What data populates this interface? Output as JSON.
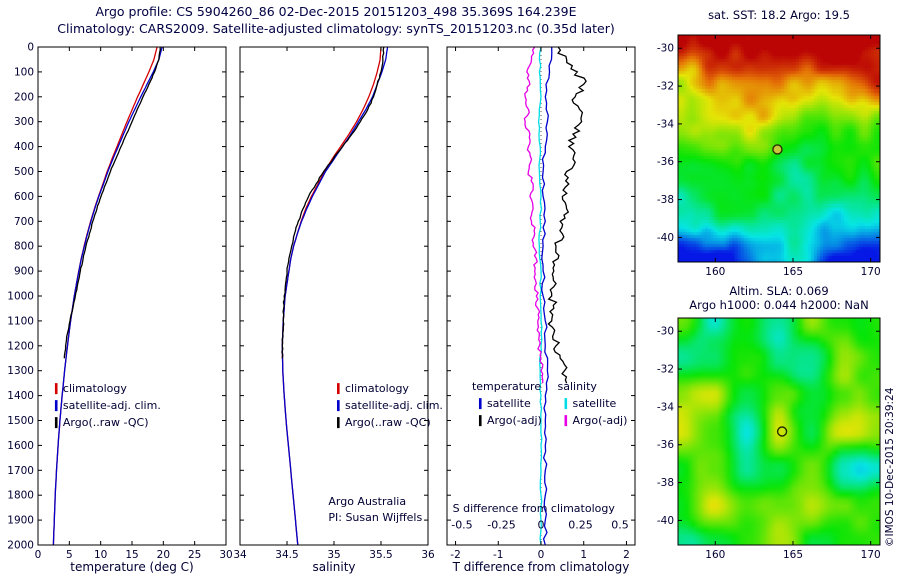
{
  "titles": {
    "line1": "Argo profile: CS 5904260_86 02-Dec-2015 20151203_498 35.369S 164.239E",
    "line2": "Climatology: CARS2009. Satellite-adjusted climatology: synTS_20151203.nc (0.35d later)"
  },
  "credit": "©IMOS 10-Dec-2015 20:39:24",
  "colors": {
    "climatology": "#d40000",
    "satclim": "#0000cd",
    "argo": "#000000",
    "sat_s": "#00dde4",
    "argo_s": "#e600e6",
    "text": "#000033"
  },
  "chart_data": [
    {
      "id": "temperature_profile",
      "type": "line",
      "xlabel": "temperature (deg C)",
      "xlim": [
        0,
        30
      ],
      "xticks": [
        0,
        5,
        10,
        15,
        20,
        25,
        30
      ],
      "xtick_labels": [
        "0",
        "5",
        "10",
        "15",
        "20",
        "25",
        "30"
      ],
      "ylim": [
        0,
        2000
      ],
      "yticks": [
        0,
        100,
        200,
        300,
        400,
        500,
        600,
        700,
        800,
        900,
        1000,
        1100,
        1200,
        1300,
        1400,
        1500,
        1600,
        1700,
        1800,
        1900,
        2000
      ],
      "show_ytick_labels": true,
      "legend": {
        "fx": 0.09,
        "fy": 0.693,
        "entries": [
          {
            "label": "climatology",
            "color": "climatology"
          },
          {
            "label": "satellite-adj. clim.",
            "color": "satclim"
          },
          {
            "label": "Argo(..raw -QC)",
            "color": "argo"
          }
        ]
      },
      "series": [
        {
          "name": "climatology",
          "color": "climatology",
          "jitter": 0,
          "depth": [
            0,
            50,
            100,
            150,
            200,
            250,
            300,
            350,
            400,
            450,
            500,
            550,
            600,
            650,
            700,
            750,
            800,
            850,
            900,
            950,
            1000,
            1100,
            1200,
            1300,
            1400,
            1500,
            1600,
            1700,
            1800,
            1900,
            2000
          ],
          "values": [
            19.0,
            18.5,
            17.7,
            16.8,
            15.9,
            15.05,
            14.2,
            13.4,
            12.6,
            11.8,
            11.05,
            10.35,
            9.65,
            9.0,
            8.4,
            7.85,
            7.35,
            6.9,
            6.5,
            6.15,
            5.8,
            5.2,
            4.7,
            4.25,
            3.85,
            3.5,
            3.2,
            2.95,
            2.75,
            2.6,
            2.45
          ]
        },
        {
          "name": "satellite-adj. clim.",
          "color": "satclim",
          "jitter": 0,
          "depth": [
            0,
            50,
            100,
            150,
            200,
            250,
            300,
            350,
            400,
            450,
            500,
            550,
            600,
            650,
            700,
            750,
            800,
            850,
            900,
            950,
            1000,
            1100,
            1200,
            1300,
            1400,
            1500,
            1600,
            1700,
            1800,
            1900,
            2000
          ],
          "values": [
            19.8,
            19.3,
            18.4,
            17.4,
            16.4,
            15.45,
            14.5,
            13.65,
            12.8,
            11.95,
            11.15,
            10.45,
            9.7,
            9.05,
            8.45,
            7.9,
            7.4,
            6.92,
            6.52,
            6.15,
            5.8,
            5.2,
            4.7,
            4.25,
            3.85,
            3.5,
            3.2,
            2.95,
            2.75,
            2.6,
            2.45
          ]
        },
        {
          "name": "Argo(..raw -QC)",
          "color": "argo",
          "jitter": 0.05,
          "seed": 4,
          "depth": [
            0,
            50,
            100,
            150,
            200,
            250,
            300,
            350,
            400,
            450,
            500,
            550,
            600,
            650,
            700,
            750,
            800,
            850,
            900,
            950,
            1000,
            1050,
            1100,
            1150,
            1200,
            1250
          ],
          "values": [
            19.5,
            19.3,
            18.6,
            17.7,
            16.75,
            15.85,
            15.0,
            14.1,
            13.25,
            12.4,
            11.55,
            10.8,
            10.05,
            9.4,
            8.75,
            8.2,
            7.65,
            7.2,
            6.75,
            6.35,
            5.95,
            5.55,
            5.1,
            4.7,
            4.4,
            4.2
          ]
        }
      ]
    },
    {
      "id": "salinity_profile",
      "type": "line",
      "xlabel": "salinity",
      "xlim": [
        34,
        36
      ],
      "xticks": [
        34,
        34.5,
        35,
        35.5,
        36
      ],
      "xtick_labels": [
        "34",
        "34.5",
        "35",
        "35.5",
        "36"
      ],
      "ylim": [
        0,
        2000
      ],
      "yticks": [
        0,
        100,
        200,
        300,
        400,
        500,
        600,
        700,
        800,
        900,
        1000,
        1100,
        1200,
        1300,
        1400,
        1500,
        1600,
        1700,
        1800,
        1900,
        2000
      ],
      "show_ytick_labels": false,
      "legend": {
        "fx": 0.516,
        "fy": 0.693,
        "entries": [
          {
            "label": "climatology",
            "color": "climatology"
          },
          {
            "label": "satellite-adj. clim.",
            "color": "satclim"
          },
          {
            "label": "Argo(..raw -QC)",
            "color": "argo"
          }
        ]
      },
      "annotations": [
        {
          "fx": 0.47,
          "fy": 0.92,
          "text": "Argo Australia"
        },
        {
          "fx": 0.47,
          "fy": 0.952,
          "text": "PI: Susan Wijffels"
        }
      ],
      "series": [
        {
          "name": "climatology",
          "color": "climatology",
          "jitter": 0,
          "depth": [
            0,
            50,
            100,
            150,
            200,
            250,
            300,
            350,
            400,
            450,
            500,
            550,
            600,
            650,
            700,
            750,
            800,
            850,
            900,
            950,
            1000,
            1100,
            1200,
            1300,
            1400,
            1500,
            1600,
            1700,
            1800,
            1900,
            2000
          ],
          "values": [
            35.5,
            35.49,
            35.46,
            35.42,
            35.37,
            35.31,
            35.24,
            35.16,
            35.07,
            34.98,
            34.9,
            34.83,
            34.76,
            34.7,
            34.65,
            34.61,
            34.57,
            34.54,
            34.52,
            34.5,
            34.48,
            34.46,
            34.45,
            34.455,
            34.47,
            34.49,
            34.515,
            34.54,
            34.565,
            34.59,
            34.615
          ]
        },
        {
          "name": "satellite-adj. clim.",
          "color": "satclim",
          "jitter": 0,
          "depth": [
            0,
            50,
            100,
            150,
            200,
            250,
            300,
            350,
            400,
            450,
            500,
            550,
            600,
            650,
            700,
            750,
            800,
            850,
            900,
            950,
            1000,
            1100,
            1200,
            1300,
            1400,
            1500,
            1600,
            1700,
            1800,
            1900,
            2000
          ],
          "values": [
            35.57,
            35.55,
            35.51,
            35.46,
            35.41,
            35.34,
            35.26,
            35.18,
            35.09,
            35.0,
            34.91,
            34.84,
            34.77,
            34.71,
            34.655,
            34.61,
            34.57,
            34.54,
            34.52,
            34.5,
            34.48,
            34.46,
            34.45,
            34.455,
            34.47,
            34.49,
            34.515,
            34.54,
            34.565,
            34.59,
            34.615
          ]
        },
        {
          "name": "Argo(..raw -QC)",
          "color": "argo",
          "jitter": 0.006,
          "seed": 9,
          "depth": [
            0,
            50,
            100,
            150,
            200,
            250,
            300,
            350,
            400,
            450,
            500,
            550,
            600,
            650,
            700,
            750,
            800,
            850,
            900,
            950,
            1000,
            1050,
            1100,
            1150,
            1200,
            1250
          ],
          "values": [
            35.53,
            35.52,
            35.5,
            35.46,
            35.42,
            35.36,
            35.28,
            35.19,
            35.09,
            34.99,
            34.89,
            34.81,
            34.73,
            34.67,
            34.62,
            34.58,
            34.55,
            34.52,
            34.5,
            34.485,
            34.47,
            34.465,
            34.46,
            34.455,
            34.45,
            34.45
          ]
        }
      ]
    },
    {
      "id": "difference_profile",
      "type": "line",
      "xlabel": "T difference from climatology",
      "xlim": [
        -2.2,
        2.2
      ],
      "xticks": [
        -2,
        -1,
        0,
        1,
        2
      ],
      "xtick_labels": [
        "-2",
        "-1",
        "0",
        "1",
        "2"
      ],
      "ylim": [
        0,
        2000
      ],
      "yticks": [
        0,
        100,
        200,
        300,
        400,
        500,
        600,
        700,
        800,
        900,
        1000,
        1100,
        1200,
        1300,
        1400,
        1500,
        1600,
        1700,
        1800,
        1900,
        2000
      ],
      "show_ytick_labels": false,
      "zero_line": true,
      "legend_cols": {
        "fy": 0.689,
        "cols": [
          {
            "fx": 0.17,
            "header": "temperature",
            "entries": [
              {
                "label": "satellite",
                "color": "satclim"
              },
              {
                "label": "Argo(-adj)",
                "color": "argo"
              }
            ]
          },
          {
            "fx": 0.625,
            "header": "salinity",
            "entries": [
              {
                "label": "satellite",
                "color": "sat_s"
              },
              {
                "label": "Argo(-adj)",
                "color": "argo_s"
              }
            ]
          }
        ]
      },
      "s_axis": {
        "label": "S difference from climatology",
        "ticks": [
          -0.5,
          -0.25,
          0,
          0.25,
          0.5
        ],
        "tick_labels": [
          "-0.5",
          "-0.25",
          "0",
          "0.25",
          "0.5"
        ],
        "factor": 3.7,
        "label_fy": 0.934,
        "ticks_fy": 0.967
      },
      "series": [
        {
          "name": "satellite S diff",
          "color": "sat_s",
          "xfactor": 3.7,
          "jitter": 0.006,
          "seed": 7,
          "depth": [
            0,
            100,
            200,
            300,
            400,
            500,
            600,
            700,
            800,
            900,
            1000,
            1100,
            1200,
            1300,
            1400,
            1500,
            1600,
            1700,
            1800,
            1900,
            2000
          ],
          "values": [
            0.0,
            -0.01,
            0.0,
            -0.015,
            -0.005,
            -0.01,
            0.0,
            -0.005,
            -0.01,
            0.0,
            -0.005,
            0.0,
            0.0,
            -0.005,
            0.0,
            0.0,
            0.0,
            0.0,
            0.0,
            0.0,
            0.0
          ]
        },
        {
          "name": "Argo S diff",
          "color": "argo_s",
          "xfactor": 3.7,
          "jitter": 0.012,
          "seed": 8,
          "depth": [
            0,
            50,
            100,
            150,
            200,
            250,
            300,
            350,
            400,
            450,
            500,
            550,
            600,
            650,
            700,
            750,
            800,
            850,
            900,
            950,
            1000,
            1050,
            1100,
            1150,
            1200,
            1250,
            1300,
            1350
          ],
          "values": [
            -0.04,
            -0.06,
            -0.09,
            -0.07,
            -0.1,
            -0.08,
            -0.1,
            -0.07,
            -0.08,
            -0.06,
            -0.08,
            -0.05,
            -0.07,
            -0.05,
            -0.06,
            -0.04,
            -0.05,
            -0.03,
            -0.04,
            -0.03,
            -0.03,
            -0.02,
            -0.02,
            -0.01,
            -0.01,
            0.0,
            0.0,
            0.01
          ]
        },
        {
          "name": "satellite T diff",
          "color": "satclim",
          "xfactor": 1,
          "jitter": 0.04,
          "seed": 5,
          "depth": [
            0,
            100,
            200,
            300,
            400,
            500,
            600,
            700,
            800,
            900,
            1000,
            1100,
            1200,
            1300,
            1400,
            1500,
            1600,
            1700,
            1800,
            1900,
            2000
          ],
          "values": [
            0.25,
            0.2,
            0.1,
            0.15,
            0.1,
            0.05,
            0.05,
            0.1,
            0.05,
            0.05,
            0.05,
            0.1,
            0.1,
            0.15,
            0.1,
            0.1,
            0.1,
            0.1,
            0.1,
            0.1,
            0.1
          ]
        },
        {
          "name": "Argo T diff",
          "color": "argo",
          "xfactor": 1,
          "jitter": 0.1,
          "seed": 6,
          "depth": [
            0,
            50,
            100,
            150,
            200,
            250,
            300,
            350,
            400,
            450,
            500,
            550,
            600,
            650,
            700,
            750,
            800,
            850,
            900,
            950,
            1000,
            1050,
            1100,
            1150,
            1200,
            1250,
            1300,
            1350
          ],
          "values": [
            0.4,
            0.6,
            0.85,
            1.0,
            0.8,
            0.9,
            0.95,
            0.75,
            0.65,
            0.75,
            0.6,
            0.65,
            0.5,
            0.6,
            0.45,
            0.5,
            0.35,
            0.4,
            0.3,
            0.35,
            0.25,
            0.3,
            0.25,
            0.3,
            0.35,
            0.45,
            0.55,
            0.6
          ]
        }
      ]
    },
    {
      "id": "sst_map",
      "type": "heatmap",
      "title": "sat. SST: 18.2  Argo: 19.5",
      "xlim": [
        157.6,
        170.6
      ],
      "ylim_top": -29.3,
      "ylim_bottom": -41.3,
      "xticks": [
        160,
        165,
        170
      ],
      "yticks": [
        -30,
        -32,
        -34,
        -36,
        -38,
        -40
      ],
      "marker": {
        "lon": 164.0,
        "lat": -35.35,
        "fill": "#c8c83c",
        "stroke": "#2e2e00"
      },
      "colormap": "jet"
    },
    {
      "id": "sla_map",
      "type": "heatmap",
      "title_line1": "Altim. SLA: 0.069",
      "title_line2": "Argo h1000: 0.044 h2000: NaN",
      "xlim": [
        157.6,
        170.6
      ],
      "ylim_top": -29.3,
      "ylim_bottom": -41.3,
      "xticks": [
        160,
        165,
        170
      ],
      "yticks": [
        -30,
        -32,
        -34,
        -36,
        -38,
        -40
      ],
      "marker": {
        "lon": 164.3,
        "lat": -35.3,
        "fill": "none",
        "stroke": "#1c2e00"
      },
      "colormap": "jet"
    }
  ]
}
